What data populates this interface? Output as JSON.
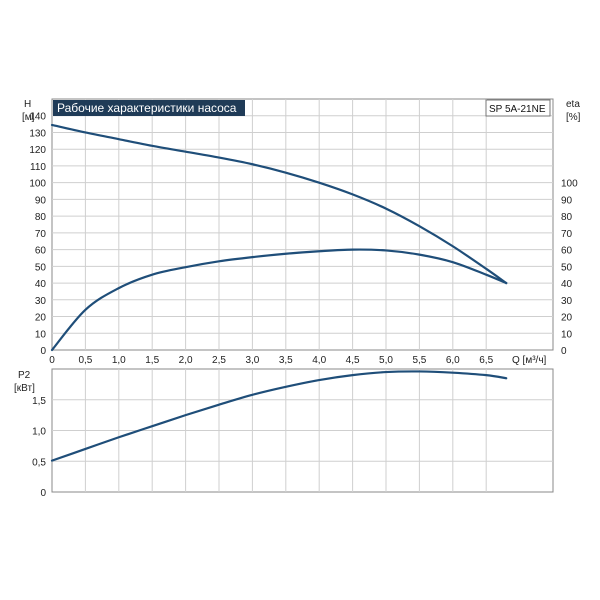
{
  "chart_data": [
    {
      "type": "line",
      "title": "Рабочие характеристики насоса",
      "model": "SP 5A-21NE",
      "left_axis_label": [
        "H",
        "[м]"
      ],
      "right_axis_label": [
        "eta",
        "[%]"
      ],
      "xlabel": "Q [м³/ч]",
      "xlim": [
        0,
        7.5
      ],
      "x_ticks": [
        "0",
        "0,5",
        "1,0",
        "1,5",
        "2,0",
        "2,5",
        "3,0",
        "3,5",
        "4,0",
        "4,5",
        "5,0",
        "5,5",
        "6,0",
        "6,5"
      ],
      "ylim": [
        0,
        150
      ],
      "y_ticks": [
        "0",
        "10",
        "20",
        "30",
        "40",
        "50",
        "60",
        "70",
        "80",
        "90",
        "100",
        "110",
        "120",
        "130",
        "140"
      ],
      "y2_ticks": [
        "0",
        "10",
        "20",
        "30",
        "40",
        "50",
        "60",
        "70",
        "80",
        "90",
        "100"
      ],
      "grid": true,
      "series": [
        {
          "name": "H",
          "color": "#1f4e79",
          "x": [
            0,
            0.5,
            1.0,
            1.5,
            2.0,
            2.5,
            3.0,
            3.5,
            4.0,
            4.5,
            5.0,
            5.5,
            6.0,
            6.5,
            6.8
          ],
          "values": [
            134.5,
            130,
            126,
            122,
            118.5,
            115,
            111,
            106,
            100,
            93,
            84.5,
            74,
            62,
            48.5,
            40
          ]
        },
        {
          "name": "eta",
          "color": "#1f4e79",
          "x": [
            0,
            0.5,
            1.0,
            1.5,
            2.0,
            2.5,
            3.0,
            3.5,
            4.0,
            4.5,
            5.0,
            5.5,
            6.0,
            6.5,
            6.8
          ],
          "values": [
            0,
            24,
            37,
            45,
            49.5,
            53,
            55.5,
            57.5,
            59,
            60,
            59.5,
            57,
            52.5,
            45,
            40
          ]
        }
      ]
    },
    {
      "type": "line",
      "title": "",
      "left_axis_label": [
        "P2",
        "[кВт]"
      ],
      "xlim": [
        0,
        7.5
      ],
      "ylim": [
        0,
        2.0
      ],
      "y_ticks": [
        "0",
        "0,5",
        "1,0",
        "1,5"
      ],
      "grid": true,
      "series": [
        {
          "name": "P2",
          "color": "#1f4e79",
          "x": [
            0,
            0.5,
            1.0,
            1.5,
            2.0,
            2.5,
            3.0,
            3.5,
            4.0,
            4.5,
            5.0,
            5.5,
            6.0,
            6.5,
            6.8
          ],
          "values": [
            0.51,
            0.7,
            0.89,
            1.07,
            1.25,
            1.42,
            1.58,
            1.71,
            1.82,
            1.9,
            1.95,
            1.96,
            1.94,
            1.9,
            1.85
          ]
        }
      ]
    }
  ]
}
